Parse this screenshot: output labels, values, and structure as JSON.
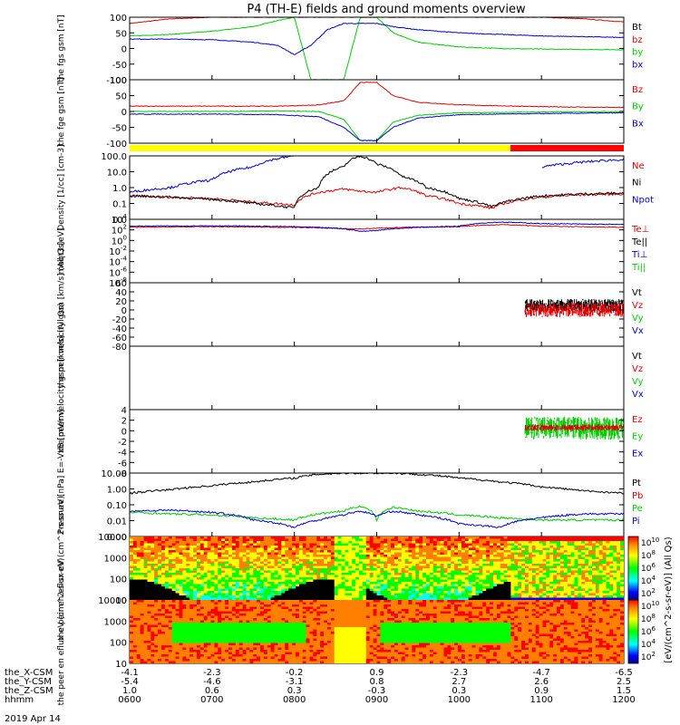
{
  "title": "P4 (TH-E) fields and ground moments overview",
  "date_label": "2019 Apr 14",
  "colors": {
    "black": "#000000",
    "red": "#e00000",
    "green": "#00cc00",
    "blue": "#0000cc",
    "yellow": "#ffff00",
    "bar_red": "#ff0000"
  },
  "footer": {
    "rows": [
      {
        "name": "the_X-CSM",
        "values": [
          "-4.1",
          "-2.3",
          "-0.2",
          "0.9",
          "-2.3",
          "-4.7",
          "-6.5"
        ]
      },
      {
        "name": "the_Y-CSM",
        "values": [
          "-5.4",
          "-4.6",
          "-3.1",
          "0.8",
          "2.7",
          "2.6",
          "2.5"
        ]
      },
      {
        "name": "the_Z-CSM",
        "values": [
          "1.0",
          "0.6",
          "0.3",
          "-0.3",
          "0.3",
          "0.9",
          "1.5"
        ]
      },
      {
        "name": "hhmm",
        "values": [
          "0600",
          "0700",
          "0800",
          "0900",
          "1000",
          "1100",
          "1200"
        ]
      }
    ]
  },
  "colorbar": {
    "ticks": [
      "10",
      "10",
      "10",
      "10",
      "10"
    ],
    "exponents": [
      "2",
      "4",
      "6",
      "8",
      "10"
    ],
    "label": "[eV/(cm^2-s-sr-eV)] (All Qs)"
  },
  "chart_data": [
    {
      "type": "line",
      "id": "fgs-gsm",
      "ylabel": "the fgs gsm [nT]",
      "ylim": [
        -100,
        100
      ],
      "ticks": [
        "100",
        "50",
        "0",
        "-50",
        "-100"
      ],
      "series": [
        {
          "name": "Bt",
          "color": "#000000"
        },
        {
          "name": "bz",
          "color": "#e00000"
        },
        {
          "name": "by",
          "color": "#00cc00"
        },
        {
          "name": "bx",
          "color": "#0000cc"
        }
      ],
      "x_hours": [
        6,
        6.5,
        7,
        7.5,
        7.8,
        8,
        8.2,
        8.4,
        8.6,
        8.8,
        9,
        9.2,
        9.5,
        10,
        10.5,
        11,
        11.5,
        12
      ],
      "values": {
        "bz": [
          80,
          95,
          100,
          100,
          100,
          100,
          100,
          100,
          100,
          100,
          100,
          100,
          100,
          100,
          100,
          100,
          95,
          85
        ],
        "by": [
          40,
          45,
          55,
          70,
          90,
          100,
          -100,
          -100,
          -100,
          100,
          100,
          50,
          20,
          5,
          0,
          -2,
          -3,
          -4
        ],
        "bx": [
          30,
          30,
          28,
          20,
          10,
          -20,
          10,
          60,
          80,
          80,
          80,
          70,
          60,
          50,
          45,
          40,
          38,
          35
        ]
      }
    },
    {
      "type": "line",
      "id": "fge-gsm",
      "ylabel": "the fge gsm [nT]",
      "ylim": [
        -120,
        120
      ],
      "ticks": [
        "100",
        "50",
        "0",
        "-50",
        "-100"
      ],
      "series": [
        {
          "name": "Bz",
          "color": "#e00000"
        },
        {
          "name": "By",
          "color": "#00cc00"
        },
        {
          "name": "Bx",
          "color": "#0000cc"
        }
      ],
      "x_hours": [
        6,
        7,
        7.8,
        8.3,
        8.6,
        8.8,
        9,
        9.2,
        9.5,
        10,
        11,
        12
      ],
      "values": {
        "Bz": [
          20,
          20,
          20,
          25,
          40,
          110,
          110,
          60,
          35,
          25,
          18,
          15
        ],
        "By": [
          0,
          0,
          2,
          0,
          -30,
          -110,
          -110,
          -40,
          -15,
          -5,
          -2,
          0
        ],
        "Bx": [
          -10,
          -10,
          -12,
          -20,
          -60,
          -110,
          -110,
          -60,
          -25,
          -12,
          -8,
          -5
        ]
      }
    },
    {
      "type": "line",
      "id": "density",
      "ylabel": "Density [1/cc] [cm-3]",
      "scale": "log",
      "ylim": [
        0.01,
        100
      ],
      "ticks": [
        "100.0",
        "10.0",
        "1.0",
        "0.1",
        "0.0"
      ],
      "series": [
        {
          "name": "Ne",
          "color": "#e00000"
        },
        {
          "name": "Ni",
          "color": "#000000"
        },
        {
          "name": "Npot",
          "color": "#0000cc"
        }
      ],
      "x_hours": [
        6,
        6.5,
        7,
        7.5,
        8,
        8.3,
        8.6,
        8.8,
        9,
        9.3,
        9.6,
        10,
        10.4,
        11,
        11.5,
        12
      ],
      "values": {
        "Ne": [
          0.3,
          0.25,
          0.2,
          0.12,
          0.08,
          0.5,
          0.8,
          0.6,
          0.5,
          1.0,
          0.3,
          0.1,
          0.05,
          0.25,
          0.35,
          0.4
        ],
        "Ni": [
          0.3,
          0.25,
          0.18,
          0.1,
          0.05,
          1.0,
          20,
          100,
          30,
          5,
          1.0,
          0.2,
          0.06,
          0.3,
          0.4,
          0.45
        ],
        "Npot": [
          0.5,
          1.0,
          3.0,
          20,
          100,
          null,
          null,
          null,
          null,
          null,
          null,
          null,
          null,
          20,
          40,
          60
        ]
      }
    },
    {
      "type": "line",
      "id": "moqt3",
      "ylabel": "moqt3 [eV]",
      "scale": "log",
      "ylim": [
        1e-08,
        10000.0
      ],
      "ticks": [
        "10",
        "10",
        "10",
        "10",
        "10",
        "10",
        "10"
      ],
      "tick_exponents": [
        "4",
        "2",
        "0",
        "-2",
        "-4",
        "-6",
        "-8"
      ],
      "series": [
        {
          "name": "Te⊥",
          "color": "#e00000"
        },
        {
          "name": "Te||",
          "color": "#000000"
        },
        {
          "name": "Ti⊥",
          "color": "#0000cc"
        },
        {
          "name": "Ti||",
          "color": "#00cc00"
        }
      ],
      "x_hours": [
        6,
        7,
        8,
        8.5,
        8.8,
        9,
        9.3,
        10,
        10.5,
        11,
        12
      ],
      "values": {
        "Te⊥": [
          300,
          400,
          300,
          200,
          150,
          200,
          300,
          400,
          1000,
          500,
          300
        ],
        "Ti⊥": [
          500,
          600,
          400,
          200,
          50,
          80,
          200,
          500,
          3000,
          1500,
          1000
        ]
      }
    },
    {
      "type": "line",
      "id": "peir-velocity",
      "ylabel": "the peir velocity gsm [km/s] (All Qs)",
      "ylim": [
        -80,
        60
      ],
      "ticks": [
        "60",
        "40",
        "20",
        "0",
        "-20",
        "-40",
        "-60",
        "-80"
      ],
      "series": [
        {
          "name": "Vt",
          "color": "#000000"
        },
        {
          "name": "Vz",
          "color": "#e00000"
        },
        {
          "name": "Vy",
          "color": "#00cc00"
        },
        {
          "name": "Vx",
          "color": "#0000cc"
        }
      ],
      "data_start_hour": 10.8,
      "values": {
        "Vt_mean": 10,
        "Vt_spread": 14,
        "Vz_mean": 0,
        "Vz_spread": 16
      }
    },
    {
      "type": "line",
      "id": "peer-velocity",
      "ylabel": "the peer velocity gsm [km/s] (All Qs)",
      "series": [
        {
          "name": "Vt",
          "color": "#000000"
        },
        {
          "name": "Vz",
          "color": "#e00000"
        },
        {
          "name": "Vy",
          "color": "#00cc00"
        },
        {
          "name": "Vx",
          "color": "#0000cc"
        }
      ]
    },
    {
      "type": "line",
      "id": "e-field",
      "ylabel": "E=-VxB [mV/m]",
      "ylim": [
        -8,
        4
      ],
      "ticks": [
        "4",
        "2",
        "0",
        "-2",
        "-4",
        "-6",
        "-8"
      ],
      "series": [
        {
          "name": "Ez",
          "color": "#e00000"
        },
        {
          "name": "Ey",
          "color": "#00cc00"
        },
        {
          "name": "Ex",
          "color": "#0000cc"
        }
      ],
      "data_start_hour": 10.8,
      "values": {
        "Ey_mean": 0.5,
        "Ey_spread": 2.2,
        "Ez_mean": 0.6,
        "Ez_spread": 0.6
      }
    },
    {
      "type": "line",
      "id": "pressure",
      "ylabel": "Pressure [nPa]",
      "scale": "log",
      "ylim": [
        0.001,
        100
      ],
      "ticks": [
        "10.00",
        "1.00",
        "0.10",
        "0.01",
        "0.00"
      ],
      "series": [
        {
          "name": "Pt",
          "color": "#000000"
        },
        {
          "name": "Pb",
          "color": "#e00000"
        },
        {
          "name": "Pe",
          "color": "#00cc00"
        },
        {
          "name": "Pi",
          "color": "#0000cc"
        }
      ],
      "x_hours": [
        6,
        6.5,
        7,
        7.5,
        8,
        8.3,
        8.6,
        8.8,
        9,
        9.2,
        9.5,
        10,
        10.5,
        11,
        11.5,
        12
      ],
      "values": {
        "Pt": [
          2.5,
          5,
          10,
          20,
          40,
          80,
          100,
          100,
          100,
          100,
          80,
          40,
          20,
          8,
          4,
          2.5
        ],
        "Pe": [
          0.08,
          0.06,
          0.05,
          0.03,
          0.02,
          0.06,
          0.1,
          0.25,
          0.02,
          0.2,
          0.1,
          0.05,
          0.03,
          0.02,
          0.02,
          0.02
        ],
        "Pi": [
          0.1,
          0.12,
          0.08,
          0.02,
          0.005,
          0.02,
          0.05,
          0.1,
          0.04,
          0.1,
          0.05,
          0.01,
          0.005,
          0.03,
          0.06,
          0.06
        ]
      }
    },
    {
      "type": "heatmap",
      "id": "peir-eflux",
      "ylabel": "the peir en eflux eV (cm^2-s-sr-eV)",
      "scale": "log",
      "ylim": [
        5,
        20000
      ],
      "ticks": [
        "10000",
        "1000",
        "100",
        "10"
      ]
    },
    {
      "type": "heatmap",
      "id": "peer-eflux",
      "ylabel": "the peer en eflux eV (cm^2-s-sr-eV)",
      "scale": "log",
      "ylim": [
        5,
        20000
      ],
      "ticks": [
        "10000",
        "1000",
        "100",
        "10"
      ]
    }
  ]
}
